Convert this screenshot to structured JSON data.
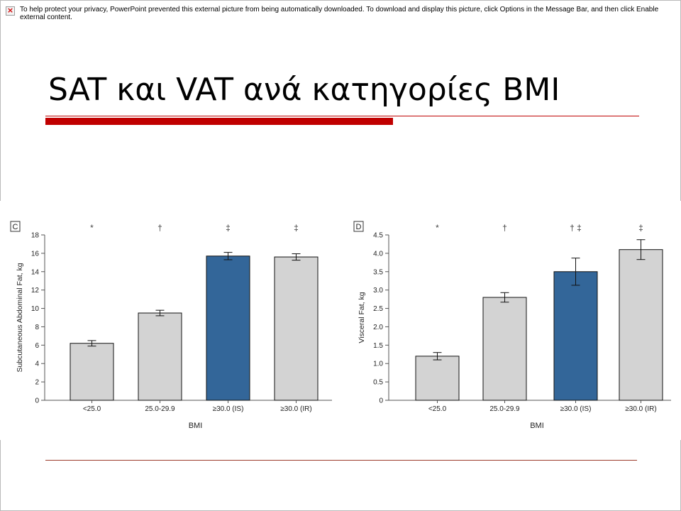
{
  "message_bar": {
    "icon": "blocked-image-x-icon",
    "text": "To help protect your privacy, PowerPoint prevented this external picture from being automatically downloaded. To download and display this picture, click Options in the Message Bar, and then click Enable external content."
  },
  "slide": {
    "title": "SAT και VAT ανά κατηγορίες BMI"
  },
  "colors": {
    "accent": "#c00000",
    "bar_gray": "#d3d3d3",
    "bar_blue": "#336699"
  },
  "chart_data": [
    {
      "type": "bar",
      "panel_label": "C",
      "categories": [
        "<25.0",
        "25.0-29.9",
        "≥30.0 (IS)",
        "≥30.0 (IR)"
      ],
      "values": [
        6.2,
        9.5,
        15.7,
        15.6
      ],
      "errors": [
        0.3,
        0.3,
        0.4,
        0.35
      ],
      "significance": [
        "*",
        "†",
        "‡",
        "‡"
      ],
      "highlight": [
        false,
        false,
        true,
        false
      ],
      "xlabel": "BMI",
      "ylabel": "Subcutaneous Abdominal Fat, kg",
      "ylim": [
        0,
        18
      ],
      "yticks": [
        0,
        2,
        4,
        6,
        8,
        10,
        12,
        14,
        16,
        18
      ],
      "ytick_labels": [
        "0",
        "2",
        "4",
        "6",
        "8",
        "10",
        "12",
        "14",
        "16",
        "18"
      ]
    },
    {
      "type": "bar",
      "panel_label": "D",
      "categories": [
        "<25.0",
        "25.0-29.9",
        "≥30.0 (IS)",
        "≥30.0 (IR)"
      ],
      "values": [
        1.2,
        2.8,
        3.5,
        4.1
      ],
      "errors": [
        0.1,
        0.13,
        0.37,
        0.27
      ],
      "significance": [
        "*",
        "†",
        "† ‡",
        "‡"
      ],
      "highlight": [
        false,
        false,
        true,
        false
      ],
      "xlabel": "BMI",
      "ylabel": "Visceral Fat, kg",
      "ylim": [
        0,
        4.5
      ],
      "yticks": [
        0,
        0.5,
        1.0,
        1.5,
        2.0,
        2.5,
        3.0,
        3.5,
        4.0,
        4.5
      ],
      "ytick_labels": [
        "0",
        "0.5",
        "1.0",
        "1.5",
        "2.0",
        "2.5",
        "3.0",
        "3.5",
        "4.0",
        "4.5"
      ]
    }
  ]
}
